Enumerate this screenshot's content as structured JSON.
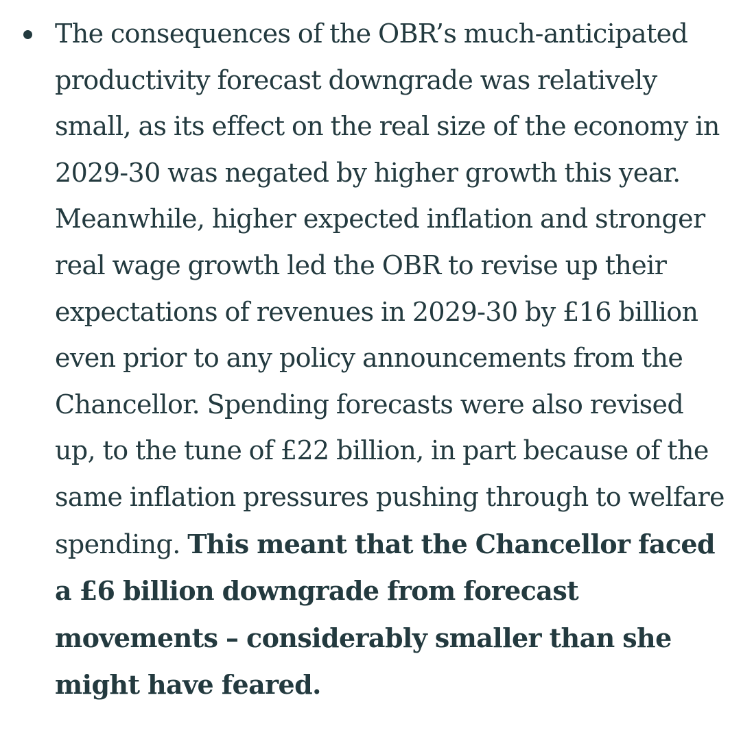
{
  "article": {
    "bullet_point": {
      "text_regular": "The consequences of the OBR’s much-anticipated productivity forecast downgrade was relatively small, as its effect on the real size of the economy in 2029-30 was negated by higher growth this year. Meanwhile, higher expected inflation and stronger real wage growth led the OBR to revise up their expectations of revenues in 2029-30 by £16 billion even prior to any policy announcements from the Chancellor. Spending forecasts were also revised up, to the tune of £22 billion, in part because of the same inflation pressures pushing through to welfare spending. ",
      "text_bold": "This meant that the Chancellor faced a £6 billion downgrade from forecast movements – considerably smaller than she might have feared."
    }
  },
  "colors": {
    "text": "#233a3f",
    "background": "#ffffff"
  }
}
